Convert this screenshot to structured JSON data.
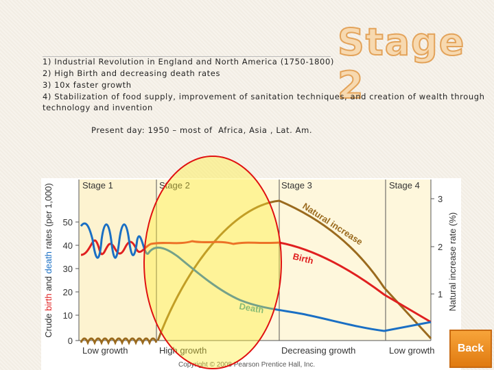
{
  "title": "Stage 2",
  "points": [
    "1) Industrial Revolution in England and North America (1750-1800)",
    "2) High Birth and decreasing death rates",
    "3) 10x faster growth",
    "4) Stabilization of food supply, improvement of sanitation techniques, and creation of wealth through",
    "technology and invention"
  ],
  "present_day": "Present day: 1950 – most of  Africa, Asia , Lat. Am.",
  "figure": {
    "stages": [
      "Stage 1",
      "Stage 2",
      "Stage 3",
      "Stage 4"
    ],
    "y_label": [
      "Crude ",
      "birth",
      " and ",
      "death",
      " rates (per 1,000)"
    ],
    "y_ticks": [
      "50",
      "40",
      "30",
      "20",
      "10",
      "0"
    ],
    "y2_label": "Natural increase rate (%)",
    "y2_ticks": [
      "3",
      "2",
      "1"
    ],
    "curve_labels": [
      "Natural increase",
      "Birth",
      "Death"
    ],
    "growth_labels": [
      "Low growth",
      "High growth",
      "Decreasing growth",
      "Low growth"
    ],
    "credit": "Copyright © 2008 Pearson Prentice Hall, Inc."
  },
  "button": "Back"
}
